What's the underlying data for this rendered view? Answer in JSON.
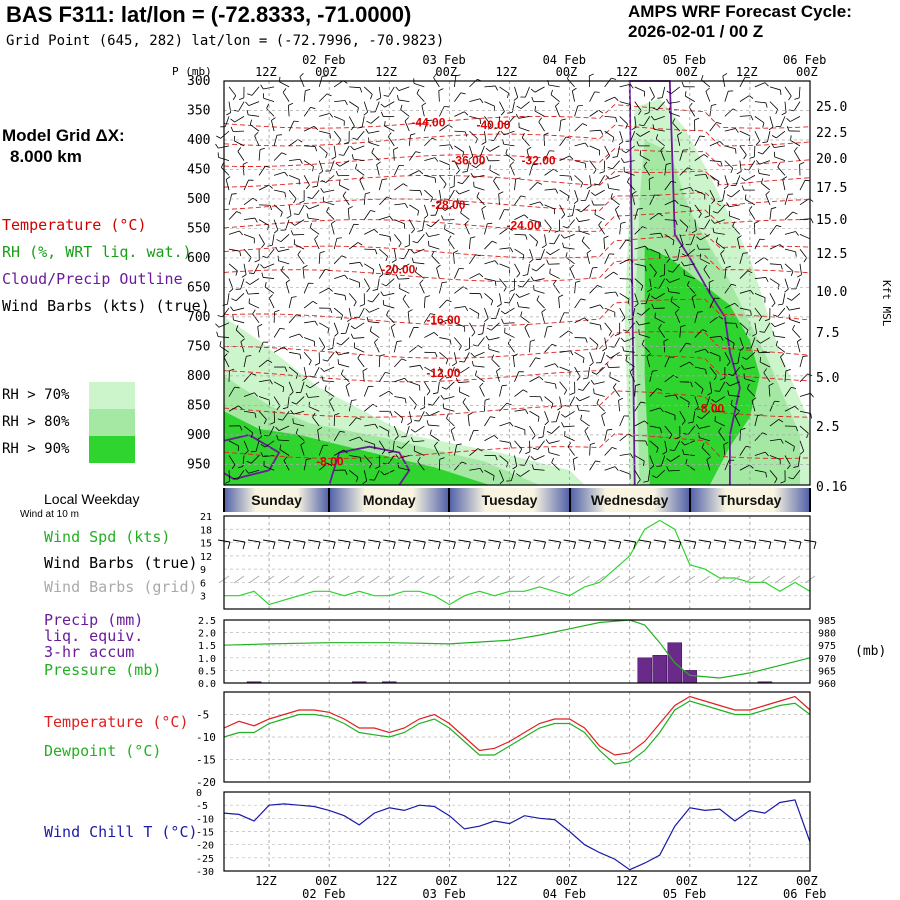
{
  "header": {
    "title": "BAS F311:  lat/lon = (-72.8333, -71.0000)",
    "subtitle": "Grid Point (645, 282) lat/lon = (-72.7996, -70.9823)",
    "cycle_line1": "AMPS WRF Forecast Cycle:",
    "cycle_line2": "2026-02-01 / 00  Z"
  },
  "grid_info": {
    "line1": "Model Grid ΔX:",
    "line2": "8.000 km"
  },
  "legend": {
    "temperature": "Temperature (°C)",
    "rh": "RH (%, WRT liq. wat.)",
    "cloud": "Cloud/Precip Outline",
    "wind": "Wind Barbs (kts) (true)",
    "rh_levels": [
      {
        "label": "RH > 70%",
        "color": "#ccf5cc"
      },
      {
        "label": "RH > 80%",
        "color": "#a4e8a4"
      },
      {
        "label": "RH > 90%",
        "color": "#2fd42f"
      }
    ]
  },
  "colors": {
    "temperature": "#e02020",
    "rh": "#2fd42f",
    "cloud": "#6a1b9a",
    "dewpoint": "#22b022",
    "windchill": "#1a1aa8",
    "pressure": "#22b022",
    "precip": "#6a2a8a"
  },
  "time_axis": {
    "hour_labels": [
      "12Z",
      "00Z",
      "12Z",
      "00Z",
      "12Z",
      "00Z",
      "12Z",
      "00Z",
      "12Z",
      "00Z"
    ],
    "hour_positions_h": [
      12,
      24,
      36,
      48,
      60,
      72,
      84,
      96,
      108,
      120
    ],
    "date_labels": [
      "02 Feb",
      "03 Feb",
      "04 Feb",
      "05 Feb",
      "06 Feb"
    ],
    "date_positions_h": [
      24,
      48,
      72,
      96,
      120
    ]
  },
  "weekdays": {
    "title": "Local Weekday",
    "note": "Wind at 10 m",
    "days": [
      "Sunday",
      "Monday",
      "Tuesday",
      "Wednesday",
      "Thursday"
    ]
  },
  "chart_data": [
    {
      "type": "heatmap",
      "name": "Vertical cross-section",
      "y_axis_label": "P (mb)",
      "pressure_ticks": [
        300,
        350,
        400,
        450,
        500,
        550,
        600,
        650,
        700,
        750,
        800,
        850,
        900,
        950
      ],
      "right_axis_label": "Kft MSL",
      "height_ticks": [
        "25.0",
        "22.5",
        "20.0",
        "17.5",
        "15.0",
        "12.5",
        "10.0",
        "7.5",
        "5.0",
        "2.5",
        "0.16"
      ],
      "xlim_hours": [
        3,
        120
      ],
      "ylim_mb": [
        300,
        985
      ],
      "temperature_contour_labels": [
        {
          "text": "-44.00",
          "hour": 44,
          "p": 370
        },
        {
          "text": "-40.00",
          "hour": 57,
          "p": 375
        },
        {
          "text": "-36.00",
          "hour": 52,
          "p": 435
        },
        {
          "text": "-32.00",
          "hour": 66,
          "p": 435
        },
        {
          "text": "-28.00",
          "hour": 48,
          "p": 510
        },
        {
          "text": "-24.00",
          "hour": 63,
          "p": 545
        },
        {
          "text": "-20.00",
          "hour": 38,
          "p": 620
        },
        {
          "text": "-16.00",
          "hour": 47,
          "p": 705
        },
        {
          "text": "-12.00",
          "hour": 47,
          "p": 795
        },
        {
          "text": "-8.00",
          "hour": 101,
          "p": 855
        },
        {
          "text": "-8.00",
          "hour": 25,
          "p": 945
        }
      ]
    },
    {
      "type": "line",
      "name": "Wind speed",
      "ylabel": "Wind Spd (kts)",
      "extra_labels": [
        "Wind Barbs (true)",
        "Wind Barbs (grid)"
      ],
      "yticks": [
        3,
        6,
        9,
        12,
        15,
        18,
        21
      ],
      "ylim": [
        0,
        21
      ],
      "x_hours": [
        3,
        6,
        9,
        12,
        15,
        18,
        21,
        24,
        27,
        30,
        33,
        36,
        39,
        42,
        45,
        48,
        51,
        54,
        57,
        60,
        63,
        66,
        69,
        72,
        75,
        78,
        81,
        84,
        87,
        90,
        93,
        96,
        99,
        102,
        105,
        108,
        111,
        114,
        117,
        120
      ],
      "values": [
        3,
        3,
        4,
        1,
        2,
        3,
        4,
        4,
        3,
        4,
        3,
        3,
        4,
        4,
        3,
        1,
        3,
        4,
        3,
        4,
        4,
        5,
        4,
        3,
        5,
        6,
        9,
        12,
        18,
        20,
        18,
        10,
        9,
        7,
        7,
        6,
        6,
        4,
        6,
        4
      ]
    },
    {
      "type": "bar",
      "name": "Precip and pressure",
      "ylabel": "Precip (mm)",
      "ylabel2": [
        "liq. equiv.",
        "3-hr accum",
        "Pressure (mb)"
      ],
      "yticks_left": [
        "0.0",
        "0.5",
        "1.0",
        "1.5",
        "2.0",
        "2.5"
      ],
      "yticks_right": [
        "960",
        "965",
        "970",
        "975",
        "980",
        "985"
      ],
      "right_unit": "(mb)",
      "precip_hours": [
        9,
        30,
        36,
        87,
        90,
        93,
        96,
        111
      ],
      "precip_values": [
        0.05,
        0.05,
        0.05,
        1.0,
        1.1,
        1.6,
        0.5,
        0.05
      ],
      "pressure_hours": [
        3,
        12,
        24,
        36,
        48,
        60,
        66,
        72,
        78,
        84,
        87,
        90,
        93,
        96,
        102,
        108,
        114,
        120
      ],
      "pressure_values": [
        975,
        975.5,
        976,
        976,
        975.5,
        977,
        979,
        981.5,
        984,
        985,
        983,
        976,
        968,
        963,
        962,
        964,
        967,
        970
      ]
    },
    {
      "type": "line",
      "name": "Temperature and dewpoint",
      "ylabel": "Temperature (°C)",
      "ylabel2": "Dewpoint (°C)",
      "yticks": [
        -20,
        -15,
        -10,
        -5
      ],
      "ylim": [
        -20,
        0
      ],
      "x_hours": [
        3,
        6,
        9,
        12,
        15,
        18,
        21,
        24,
        27,
        30,
        33,
        36,
        39,
        42,
        45,
        48,
        51,
        54,
        57,
        60,
        63,
        66,
        69,
        72,
        75,
        78,
        81,
        84,
        87,
        90,
        93,
        96,
        99,
        102,
        105,
        108,
        111,
        114,
        117,
        120
      ],
      "series": [
        {
          "name": "Temperature",
          "values": [
            -8,
            -6.5,
            -7.5,
            -6,
            -5,
            -4,
            -4,
            -4.5,
            -6,
            -8,
            -8,
            -9,
            -8,
            -6,
            -5,
            -7,
            -10,
            -13,
            -12.5,
            -11,
            -9,
            -7,
            -6,
            -6,
            -8,
            -12,
            -14,
            -13.5,
            -11,
            -7,
            -3,
            -1,
            -2,
            -3,
            -4,
            -4,
            -3,
            -2,
            -1,
            -4
          ]
        },
        {
          "name": "Dewpoint",
          "values": [
            -10,
            -9,
            -9,
            -7,
            -6,
            -5,
            -5,
            -5.5,
            -7,
            -9,
            -9.5,
            -10,
            -9,
            -7,
            -6,
            -8,
            -11,
            -14,
            -14,
            -12,
            -10,
            -8,
            -7,
            -7,
            -9,
            -13,
            -16,
            -15.5,
            -13,
            -9,
            -4,
            -2,
            -3,
            -4,
            -5,
            -5,
            -4,
            -3,
            -2.5,
            -5
          ]
        }
      ]
    },
    {
      "type": "line",
      "name": "Wind chill",
      "ylabel": "Wind Chill T (°C)",
      "yticks": [
        -30,
        -25,
        -20,
        -15,
        -10,
        -5,
        0
      ],
      "ylim": [
        -30,
        0
      ],
      "x_hours": [
        3,
        6,
        9,
        12,
        15,
        18,
        21,
        24,
        27,
        30,
        33,
        36,
        39,
        42,
        45,
        48,
        51,
        54,
        57,
        60,
        63,
        66,
        69,
        72,
        75,
        78,
        81,
        84,
        87,
        90,
        93,
        96,
        99,
        102,
        105,
        108,
        111,
        114,
        117,
        120
      ],
      "values": [
        -8,
        -8.5,
        -11,
        -5,
        -4.5,
        -5,
        -5.5,
        -7,
        -9,
        -12.5,
        -8,
        -6,
        -7,
        -5,
        -5.5,
        -9,
        -14,
        -13,
        -11,
        -12,
        -9,
        -10,
        -10.5,
        -15,
        -20,
        -23,
        -25.5,
        -29.5,
        -27,
        -24,
        -13,
        -6,
        -7,
        -6.5,
        -11,
        -7,
        -8,
        -4,
        -3,
        -19
      ]
    }
  ]
}
